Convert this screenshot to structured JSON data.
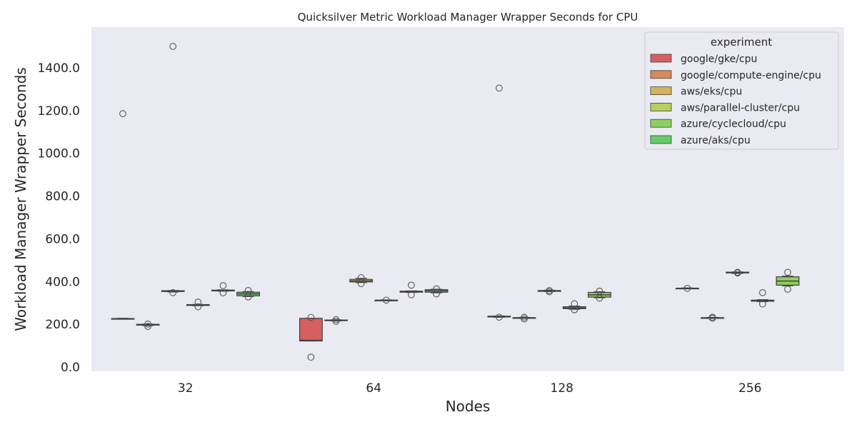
{
  "chart_data": {
    "type": "boxplot",
    "title": "Quicksilver Metric Workload Manager Wrapper Seconds for CPU",
    "xlabel": "Nodes",
    "ylabel": "Workload Manager Wrapper Seconds",
    "categories": [
      "32",
      "64",
      "128",
      "256"
    ],
    "yticks": [
      "0.0",
      "200.0",
      "400.0",
      "600.0",
      "800.0",
      "1000.0",
      "1200.0",
      "1400.0"
    ],
    "ylim": [
      -20,
      1590
    ],
    "grid": false,
    "legend": {
      "title": "experiment",
      "placement": "top-right"
    },
    "series": [
      {
        "name": "google/gke/cpu",
        "color": "#d65f5f",
        "boxes": [
          {
            "category": "32",
            "q1": 225,
            "median": 226,
            "q3": 227,
            "whislo": 224,
            "whishi": 228,
            "fliers": [
              1185
            ]
          },
          {
            "category": "64",
            "q1": 122,
            "median": 125,
            "q3": 228,
            "whislo": 122,
            "whishi": 228,
            "fliers": [
              46,
              232
            ]
          },
          {
            "category": "128",
            "q1": 234,
            "median": 236,
            "q3": 238,
            "whislo": 233,
            "whishi": 239,
            "fliers": [
              233,
              1305
            ]
          },
          {
            "category": "256",
            "q1": 367,
            "median": 368,
            "q3": 369,
            "whislo": 366,
            "whishi": 370,
            "fliers": [
              368
            ]
          }
        ]
      },
      {
        "name": "google/compute-engine/cpu",
        "color": "#d5895c",
        "boxes": [
          {
            "category": "32",
            "q1": 196,
            "median": 198,
            "q3": 200,
            "whislo": 194,
            "whishi": 201,
            "fliers": [
              190,
              201
            ]
          },
          {
            "category": "64",
            "q1": 217,
            "median": 218,
            "q3": 220,
            "whislo": 216,
            "whishi": 221,
            "fliers": [
              214,
              222
            ]
          },
          {
            "category": "128",
            "q1": 229,
            "median": 230,
            "q3": 231,
            "whislo": 228,
            "whishi": 232,
            "fliers": [
              225,
              233
            ]
          },
          {
            "category": "256",
            "q1": 229,
            "median": 230,
            "q3": 231,
            "whislo": 228,
            "whishi": 232,
            "fliers": [
              228,
              233
            ]
          }
        ]
      },
      {
        "name": "aws/eks/cpu",
        "color": "#d3b45b",
        "boxes": [
          {
            "category": "32",
            "q1": 353,
            "median": 355,
            "q3": 357,
            "whislo": 351,
            "whishi": 358,
            "fliers": [
              348,
              1500
            ]
          },
          {
            "category": "64",
            "q1": 398,
            "median": 403,
            "q3": 410,
            "whislo": 395,
            "whishi": 415,
            "fliers": [
              390,
              418
            ]
          },
          {
            "category": "128",
            "q1": 354,
            "median": 356,
            "q3": 358,
            "whislo": 353,
            "whishi": 359,
            "fliers": [
              352,
              358
            ]
          },
          {
            "category": "256",
            "q1": 440,
            "median": 442,
            "q3": 444,
            "whislo": 438,
            "whishi": 445,
            "fliers": [
              440,
              443
            ]
          }
        ]
      },
      {
        "name": "aws/parallel-cluster/cpu",
        "color": "#b8cf5b",
        "boxes": [
          {
            "category": "32",
            "q1": 288,
            "median": 290,
            "q3": 292,
            "whislo": 287,
            "whishi": 293,
            "fliers": [
              282,
              304
            ]
          },
          {
            "category": "64",
            "q1": 311,
            "median": 312,
            "q3": 313,
            "whislo": 310,
            "whishi": 314,
            "fliers": [
              313
            ]
          },
          {
            "category": "128",
            "q1": 273,
            "median": 277,
            "q3": 282,
            "whislo": 270,
            "whishi": 285,
            "fliers": [
              268,
              296
            ]
          },
          {
            "category": "256",
            "q1": 308,
            "median": 310,
            "q3": 313,
            "whislo": 306,
            "whishi": 315,
            "fliers": [
              295,
              348
            ]
          }
        ]
      },
      {
        "name": "azure/cyclecloud/cpu",
        "color": "#8ed05f",
        "boxes": [
          {
            "category": "32",
            "q1": 356,
            "median": 358,
            "q3": 360,
            "whislo": 355,
            "whishi": 361,
            "fliers": [
              347,
              381
            ]
          },
          {
            "category": "64",
            "q1": 350,
            "median": 352,
            "q3": 355,
            "whislo": 349,
            "whishi": 356,
            "fliers": [
              338,
              383
            ]
          },
          {
            "category": "128",
            "q1": 327,
            "median": 338,
            "q3": 349,
            "whislo": 324,
            "whishi": 352,
            "fliers": [
              322,
              355
            ]
          },
          {
            "category": "256",
            "q1": 383,
            "median": 402,
            "q3": 422,
            "whislo": 380,
            "whishi": 425,
            "fliers": [
              364,
              443
            ]
          }
        ]
      },
      {
        "name": "azure/aks/cpu",
        "color": "#67cd6a",
        "boxes": [
          {
            "category": "32",
            "q1": 333,
            "median": 342,
            "q3": 350,
            "whislo": 330,
            "whishi": 353,
            "fliers": [
              328,
              358
            ]
          },
          {
            "category": "64",
            "q1": 350,
            "median": 356,
            "q3": 362,
            "whislo": 347,
            "whishi": 364,
            "fliers": [
              342,
              366
            ]
          }
        ]
      }
    ]
  }
}
